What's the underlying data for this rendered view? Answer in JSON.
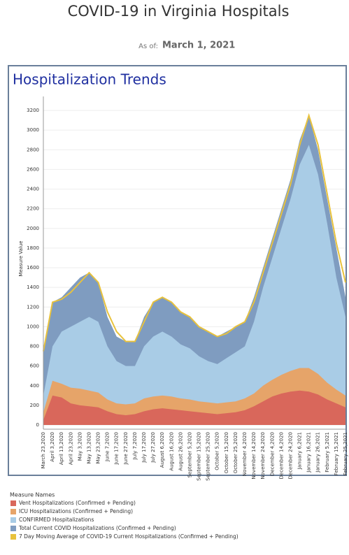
{
  "header": {
    "title": "COVID-19 in Virginia Hospitals",
    "as_of_label": "As of:",
    "as_of_date": "March 1, 2021"
  },
  "chart_data": {
    "type": "area",
    "title": "Hospitalization Trends",
    "y_label": "Measure Value",
    "legend_title": "Measure Names",
    "categories": [
      "March 23,2020",
      "April 3,2020",
      "April 13,2020",
      "April 23,2020",
      "May 3,2020",
      "May 13,2020",
      "May 23,2020",
      "June 7,2020",
      "June 17,2020",
      "June 27,2020",
      "July 7,2020",
      "July 17,2020",
      "July 27,2020",
      "August 6,2020",
      "August 16,2020",
      "August 26,2020",
      "September 5,2020",
      "September 15,2020",
      "September 25,2020",
      "October 5,2020",
      "October 15,2020",
      "October 25,2020",
      "November 4,2020",
      "November 14,2020",
      "November 24,2020",
      "December 4,2020",
      "December 14,2020",
      "December 24,2020",
      "January 6,2021",
      "January 16,2021",
      "January 26,2021",
      "February 5,2021",
      "February 15,2021",
      "February 25,2021"
    ],
    "series": [
      {
        "name": "Total Current COVID Hospitalizations (Confirmed + Pending)",
        "color": "#7f9cc0",
        "mark": "area",
        "values": [
          750,
          1250,
          1300,
          1400,
          1500,
          1550,
          1450,
          1100,
          900,
          850,
          850,
          1100,
          1250,
          1300,
          1250,
          1150,
          1100,
          1000,
          950,
          900,
          950,
          1000,
          1050,
          1300,
          1600,
          1900,
          2200,
          2500,
          2900,
          3150,
          2800,
          2300,
          1800,
          1300
        ]
      },
      {
        "name": "CONFIRMED Hospitalizations",
        "color": "#a9cce6",
        "mark": "area",
        "values": [
          300,
          800,
          950,
          1000,
          1050,
          1100,
          1050,
          800,
          650,
          600,
          600,
          800,
          900,
          950,
          900,
          820,
          780,
          700,
          650,
          620,
          680,
          740,
          800,
          1050,
          1400,
          1700,
          2000,
          2300,
          2650,
          2850,
          2550,
          2050,
          1500,
          1100
        ]
      },
      {
        "name": "ICU Hospitalizations (Confirmed + Pending)",
        "color": "#e6a469",
        "mark": "area",
        "values": [
          130,
          450,
          420,
          380,
          370,
          350,
          330,
          260,
          220,
          210,
          220,
          270,
          290,
          300,
          290,
          270,
          260,
          240,
          230,
          220,
          230,
          240,
          270,
          320,
          400,
          460,
          510,
          550,
          580,
          580,
          520,
          430,
          360,
          300
        ]
      },
      {
        "name": "Vent Hospitalizations (Confirmed + Pending)",
        "color": "#d9675b",
        "mark": "area",
        "values": [
          50,
          300,
          280,
          220,
          200,
          190,
          180,
          140,
          110,
          100,
          110,
          140,
          160,
          170,
          160,
          150,
          140,
          130,
          120,
          110,
          120,
          130,
          150,
          190,
          240,
          290,
          320,
          340,
          350,
          340,
          310,
          260,
          220,
          180
        ]
      },
      {
        "name": "7 Day Moving Average of COVID-19 Current Hospitalizations (Confirmed + Pending)",
        "color": "#e8c23d",
        "mark": "line",
        "values": [
          750,
          1250,
          1280,
          1350,
          1450,
          1550,
          1450,
          1150,
          950,
          850,
          850,
          1050,
          1250,
          1300,
          1250,
          1150,
          1100,
          1000,
          950,
          900,
          930,
          1000,
          1050,
          1250,
          1550,
          1850,
          2150,
          2450,
          2850,
          3150,
          2850,
          2350,
          1850,
          1450
        ]
      }
    ],
    "legend_order": [
      3,
      2,
      1,
      0,
      4
    ],
    "ylim": [
      0,
      3300
    ],
    "yticks": [
      0,
      200,
      400,
      600,
      800,
      1000,
      1200,
      1400,
      1600,
      1800,
      2000,
      2200,
      2400,
      2600,
      2800,
      3000,
      3200
    ],
    "grid": true
  }
}
